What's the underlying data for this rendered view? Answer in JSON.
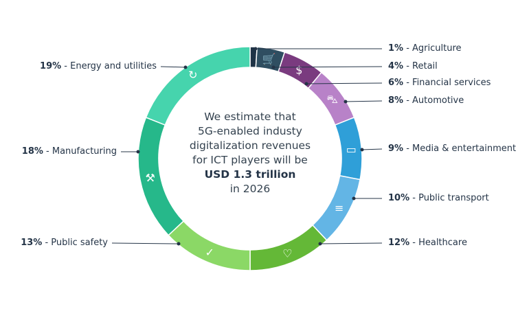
{
  "chart_data": {
    "type": "pie",
    "variant": "donut",
    "direction": "clockwise from top",
    "slices": [
      {
        "label": "Agriculture",
        "pct_label": "1%",
        "value": 1,
        "color": "#1f3346",
        "icon": "none"
      },
      {
        "label": "Retail",
        "pct_label": "4%",
        "value": 4,
        "color": "#2f4e61",
        "icon": "shopping-cart-icon"
      },
      {
        "label": "Financial services",
        "pct_label": "6%",
        "value": 6,
        "color": "#7a3b7f",
        "icon": "money-bag-icon"
      },
      {
        "label": "Automotive",
        "pct_label": "8%",
        "value": 8,
        "color": "#b882c8",
        "icon": "car-icon"
      },
      {
        "label": "Media & entertainment",
        "pct_label": "9%",
        "value": 9,
        "color": "#2f9fd8",
        "icon": "monitor-icon"
      },
      {
        "label": "Public transport",
        "pct_label": "10%",
        "value": 10,
        "color": "#63b5e5",
        "icon": "train-icon"
      },
      {
        "label": "Healthcare",
        "pct_label": "12%",
        "value": 12,
        "color": "#64b837",
        "icon": "hand-heart-icon"
      },
      {
        "label": "Public safety",
        "pct_label": "13%",
        "value": 13,
        "color": "#8bd866",
        "icon": "shield-check-icon"
      },
      {
        "label": "Manufacturing",
        "pct_label": "18%",
        "value": 18,
        "color": "#26b88a",
        "icon": "robot-arm-icon"
      },
      {
        "label": "Energy and utilities",
        "pct_label": "19%",
        "value": 19,
        "color": "#46d4ad",
        "icon": "energy-cycle-icon"
      }
    ],
    "center_text": {
      "lines": [
        "We estimate that",
        "5G-enabled industy",
        "digitalization revenues",
        "for ICT players will be"
      ],
      "highlight": "USD 1.3 trillion",
      "footer": "in 2026"
    },
    "leader_color": "#243447"
  }
}
